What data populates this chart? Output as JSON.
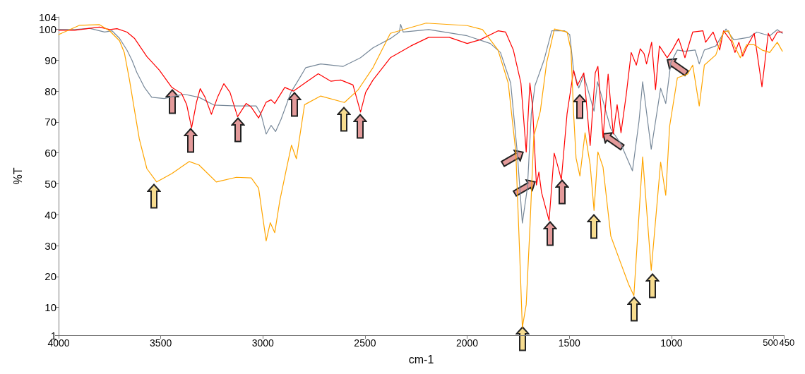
{
  "chart_data": {
    "type": "line",
    "xlabel": "cm-1",
    "ylabel": "%T",
    "xlim": [
      4000,
      450
    ],
    "ylim": [
      1,
      104
    ],
    "xticks": [
      4000,
      3500,
      3000,
      2500,
      2000,
      1500,
      1000,
      500,
      450
    ],
    "yticks": [
      1,
      10,
      20,
      30,
      40,
      50,
      60,
      70,
      80,
      90,
      100,
      104
    ],
    "grid": false,
    "marker": "none",
    "line_style": "solid",
    "series": [
      {
        "color": "#778899",
        "x": [
          4000,
          3921,
          3848,
          3775,
          3738,
          3702,
          3665,
          3641,
          3617,
          3580,
          3544,
          3483,
          3386,
          3313,
          3240,
          3130,
          3033,
          3009,
          2984,
          2960,
          2938,
          2911,
          2863,
          2826,
          2790,
          2717,
          2607,
          2522,
          2461,
          2376,
          2332,
          2326,
          2313,
          2188,
          2000,
          1887,
          1837,
          1787,
          1755,
          1730,
          1705,
          1686,
          1668,
          1624,
          1586,
          1523,
          1498,
          1479,
          1454,
          1429,
          1404,
          1379,
          1362,
          1335,
          1297,
          1247,
          1191,
          1159,
          1141,
          1099,
          1053,
          1028,
          1003,
          971,
          934,
          884,
          864,
          839,
          783,
          733,
          695,
          620,
          582,
          519,
          482,
          457
        ],
        "values": [
          100,
          99.9,
          100.3,
          99.1,
          99.5,
          97.1,
          93.2,
          90,
          86,
          81.2,
          78,
          77.6,
          79,
          78,
          75.5,
          75.2,
          75.2,
          72.5,
          66.1,
          68.9,
          66.9,
          70.9,
          79.6,
          83.6,
          87.6,
          88.8,
          88,
          90.8,
          94,
          97,
          99.1,
          101.6,
          99.1,
          99.9,
          97.9,
          95.4,
          92.5,
          82.6,
          60.3,
          37.3,
          48.8,
          72.7,
          81.8,
          90,
          99.5,
          99.5,
          98.3,
          86.7,
          81,
          85.1,
          79.3,
          73.5,
          83,
          76.8,
          67.8,
          62.8,
          54.2,
          70.2,
          83,
          61.2,
          80.9,
          76,
          89.2,
          93.3,
          92.9,
          93.3,
          88.8,
          93.3,
          94.6,
          100.1,
          96.6,
          97.4,
          99.1,
          97.9,
          99.9,
          98.7
        ]
      },
      {
        "color": "#ff0000",
        "x": [
          4000,
          3921,
          3800,
          3750,
          3714,
          3665,
          3629,
          3568,
          3507,
          3446,
          3398,
          3373,
          3349,
          3325,
          3307,
          3283,
          3252,
          3222,
          3191,
          3161,
          3124,
          3082,
          3057,
          3021,
          2984,
          2960,
          2942,
          2893,
          2850,
          2790,
          2729,
          2668,
          2619,
          2559,
          2522,
          2497,
          2461,
          2376,
          2276,
          2188,
          2088,
          2000,
          1937,
          1849,
          1812,
          1774,
          1737,
          1711,
          1693,
          1680,
          1661,
          1649,
          1636,
          1599,
          1574,
          1555,
          1539,
          1511,
          1479,
          1461,
          1429,
          1398,
          1373,
          1360,
          1335,
          1310,
          1285,
          1266,
          1247,
          1222,
          1197,
          1172,
          1153,
          1134,
          1122,
          1097,
          1078,
          1059,
          1021,
          996,
          965,
          934,
          896,
          846,
          833,
          796,
          764,
          745,
          708,
          689,
          670,
          651,
          632,
          595,
          557,
          526,
          507,
          482,
          457
        ],
        "values": [
          99.7,
          99.7,
          100.7,
          99.9,
          100.2,
          99.1,
          97.1,
          91.2,
          86.8,
          81.2,
          79.2,
          75.6,
          68.1,
          76.4,
          80.8,
          78,
          72.5,
          78,
          82.4,
          79.6,
          71.7,
          76,
          74.8,
          71.3,
          76.4,
          77.2,
          76,
          81.2,
          80,
          82.8,
          85.6,
          83.2,
          83.6,
          82,
          73.2,
          79.6,
          83.6,
          90.8,
          94.6,
          97.4,
          97.4,
          95.4,
          96.6,
          99.5,
          99.1,
          93.3,
          82.6,
          60.3,
          82.6,
          75.2,
          49.6,
          53.8,
          47.2,
          38.1,
          59.9,
          55.4,
          51.3,
          72.7,
          86.7,
          81.8,
          85.9,
          62.4,
          85.9,
          88,
          64.9,
          85.5,
          66.1,
          75.6,
          66.5,
          78.5,
          92.5,
          88.4,
          93.7,
          92.1,
          88.8,
          95.8,
          80.5,
          94.6,
          90.8,
          93.3,
          97,
          90.8,
          99.1,
          99.5,
          95.8,
          99.1,
          93.3,
          99.5,
          96.2,
          92.5,
          95.8,
          91.3,
          94.2,
          98.7,
          81.4,
          98.7,
          96.2,
          99.1,
          99.1
        ]
      },
      {
        "color": "#ffa500",
        "x": [
          4000,
          3897,
          3800,
          3750,
          3702,
          3678,
          3653,
          3629,
          3605,
          3568,
          3520,
          3446,
          3361,
          3313,
          3228,
          3130,
          3057,
          3021,
          3002,
          2984,
          2964,
          2942,
          2917,
          2887,
          2860,
          2836,
          2796,
          2717,
          2601,
          2534,
          2461,
          2376,
          2201,
          2000,
          1925,
          1849,
          1799,
          1762,
          1743,
          1730,
          1711,
          1693,
          1674,
          1642,
          1611,
          1573,
          1511,
          1492,
          1479,
          1467,
          1448,
          1423,
          1398,
          1379,
          1360,
          1335,
          1297,
          1247,
          1210,
          1184,
          1141,
          1099,
          1053,
          1028,
          1009,
          971,
          921,
          896,
          864,
          839,
          783,
          745,
          720,
          695,
          663,
          632,
          595,
          557,
          519,
          482,
          457
        ],
        "values": [
          98.3,
          101.3,
          101.5,
          99.5,
          96.3,
          92.4,
          83.6,
          74,
          64.5,
          54.9,
          50.6,
          53.3,
          57.2,
          56.1,
          50.6,
          52.1,
          51.9,
          48.6,
          39.8,
          31.5,
          37.4,
          34.2,
          44.6,
          54.1,
          62.5,
          58.1,
          75.6,
          78.4,
          76.3,
          80.4,
          87.6,
          98.7,
          102,
          101.2,
          99.9,
          93.3,
          82.6,
          60.3,
          27.4,
          3.5,
          10.9,
          35.6,
          65.3,
          73.5,
          89.2,
          100.1,
          99.1,
          93.3,
          72.7,
          58.3,
          52.5,
          66.5,
          56.2,
          41.4,
          60.3,
          55.4,
          33.1,
          24.1,
          17.5,
          13.8,
          58.7,
          22,
          57,
          46.3,
          68.6,
          84.3,
          85.5,
          88.4,
          75.2,
          88.4,
          91.7,
          99.1,
          99.5,
          95,
          90.8,
          95,
          95,
          93.3,
          92.5,
          95.8,
          92.9
        ]
      }
    ]
  }
}
